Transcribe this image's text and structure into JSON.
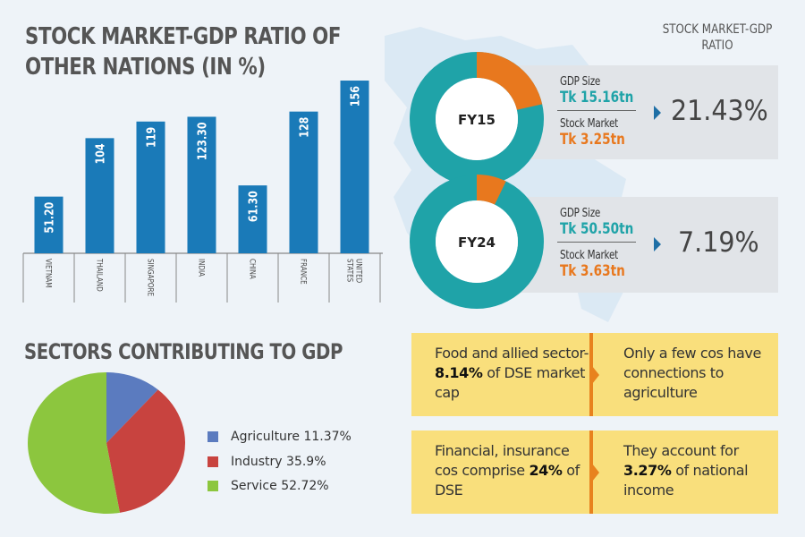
{
  "colors": {
    "bar": "#1a7ab8",
    "teal": "#1fa3a8",
    "orange": "#e8781e",
    "agriculture": "#5b7bbf",
    "industry": "#c8433f",
    "service": "#8cc63e",
    "yellow": "#f9df7c"
  },
  "chart_data": [
    {
      "type": "bar",
      "title": "STOCK MARKET-GDP RATIO OF OTHER NATIONS (IN %)",
      "categories": [
        "VIETNAM",
        "THAILAND",
        "SINGAPORE",
        "INDIA",
        "CHINA",
        "FRANCE",
        "UNITED STATES"
      ],
      "values": [
        51.2,
        104,
        119,
        123.3,
        61.3,
        128,
        156
      ],
      "value_labels": [
        "51.20",
        "104",
        "119",
        "123.30",
        "61.30",
        "128",
        "156"
      ],
      "xlabel": "",
      "ylabel": "",
      "ylim": [
        0,
        160
      ],
      "grid": false
    },
    {
      "type": "pie",
      "title": "SECTORS CONTRIBUTING TO GDP",
      "categories": [
        "Agriculture",
        "Industry",
        "Service"
      ],
      "values": [
        11.37,
        35.9,
        52.72
      ],
      "legend_labels": [
        "Agriculture 11.37%",
        "Industry 35.9%",
        "Service 52.72%"
      ],
      "legend": "right"
    },
    {
      "type": "pie",
      "title": "FY15",
      "categories": [
        "GDP Size",
        "Stock Market"
      ],
      "values": [
        15.16,
        3.25
      ],
      "ratio_percent": 21.43
    },
    {
      "type": "pie",
      "title": "FY24",
      "categories": [
        "GDP Size",
        "Stock Market"
      ],
      "values": [
        50.5,
        3.63
      ],
      "ratio_percent": 7.19
    }
  ],
  "ratio_section": {
    "title": "STOCK MARKET-GDP RATIO",
    "rows": [
      {
        "year": "FY15",
        "gdp_label": "GDP Size",
        "gdp_value": "Tk 15.16tn",
        "sm_label": "Stock Market",
        "sm_value": "Tk 3.25tn",
        "ratio": "21.43%"
      },
      {
        "year": "FY24",
        "gdp_label": "GDP Size",
        "gdp_value": "Tk 50.50tn",
        "sm_label": "Stock Market",
        "sm_value": "Tk 3.63tn",
        "ratio": "7.19%"
      }
    ]
  },
  "facts": [
    {
      "left_pre": "Food and allied sector-",
      "left_bold": "8.14%",
      "left_post": " of DSE market cap",
      "right_pre": "Only a few cos have connections to agriculture",
      "right_bold": "",
      "right_post": ""
    },
    {
      "left_pre": "Financial, insurance cos comprise ",
      "left_bold": "24%",
      "left_post": " of DSE",
      "right_pre": "They account for ",
      "right_bold": "3.27%",
      "right_post": " of national income"
    }
  ]
}
